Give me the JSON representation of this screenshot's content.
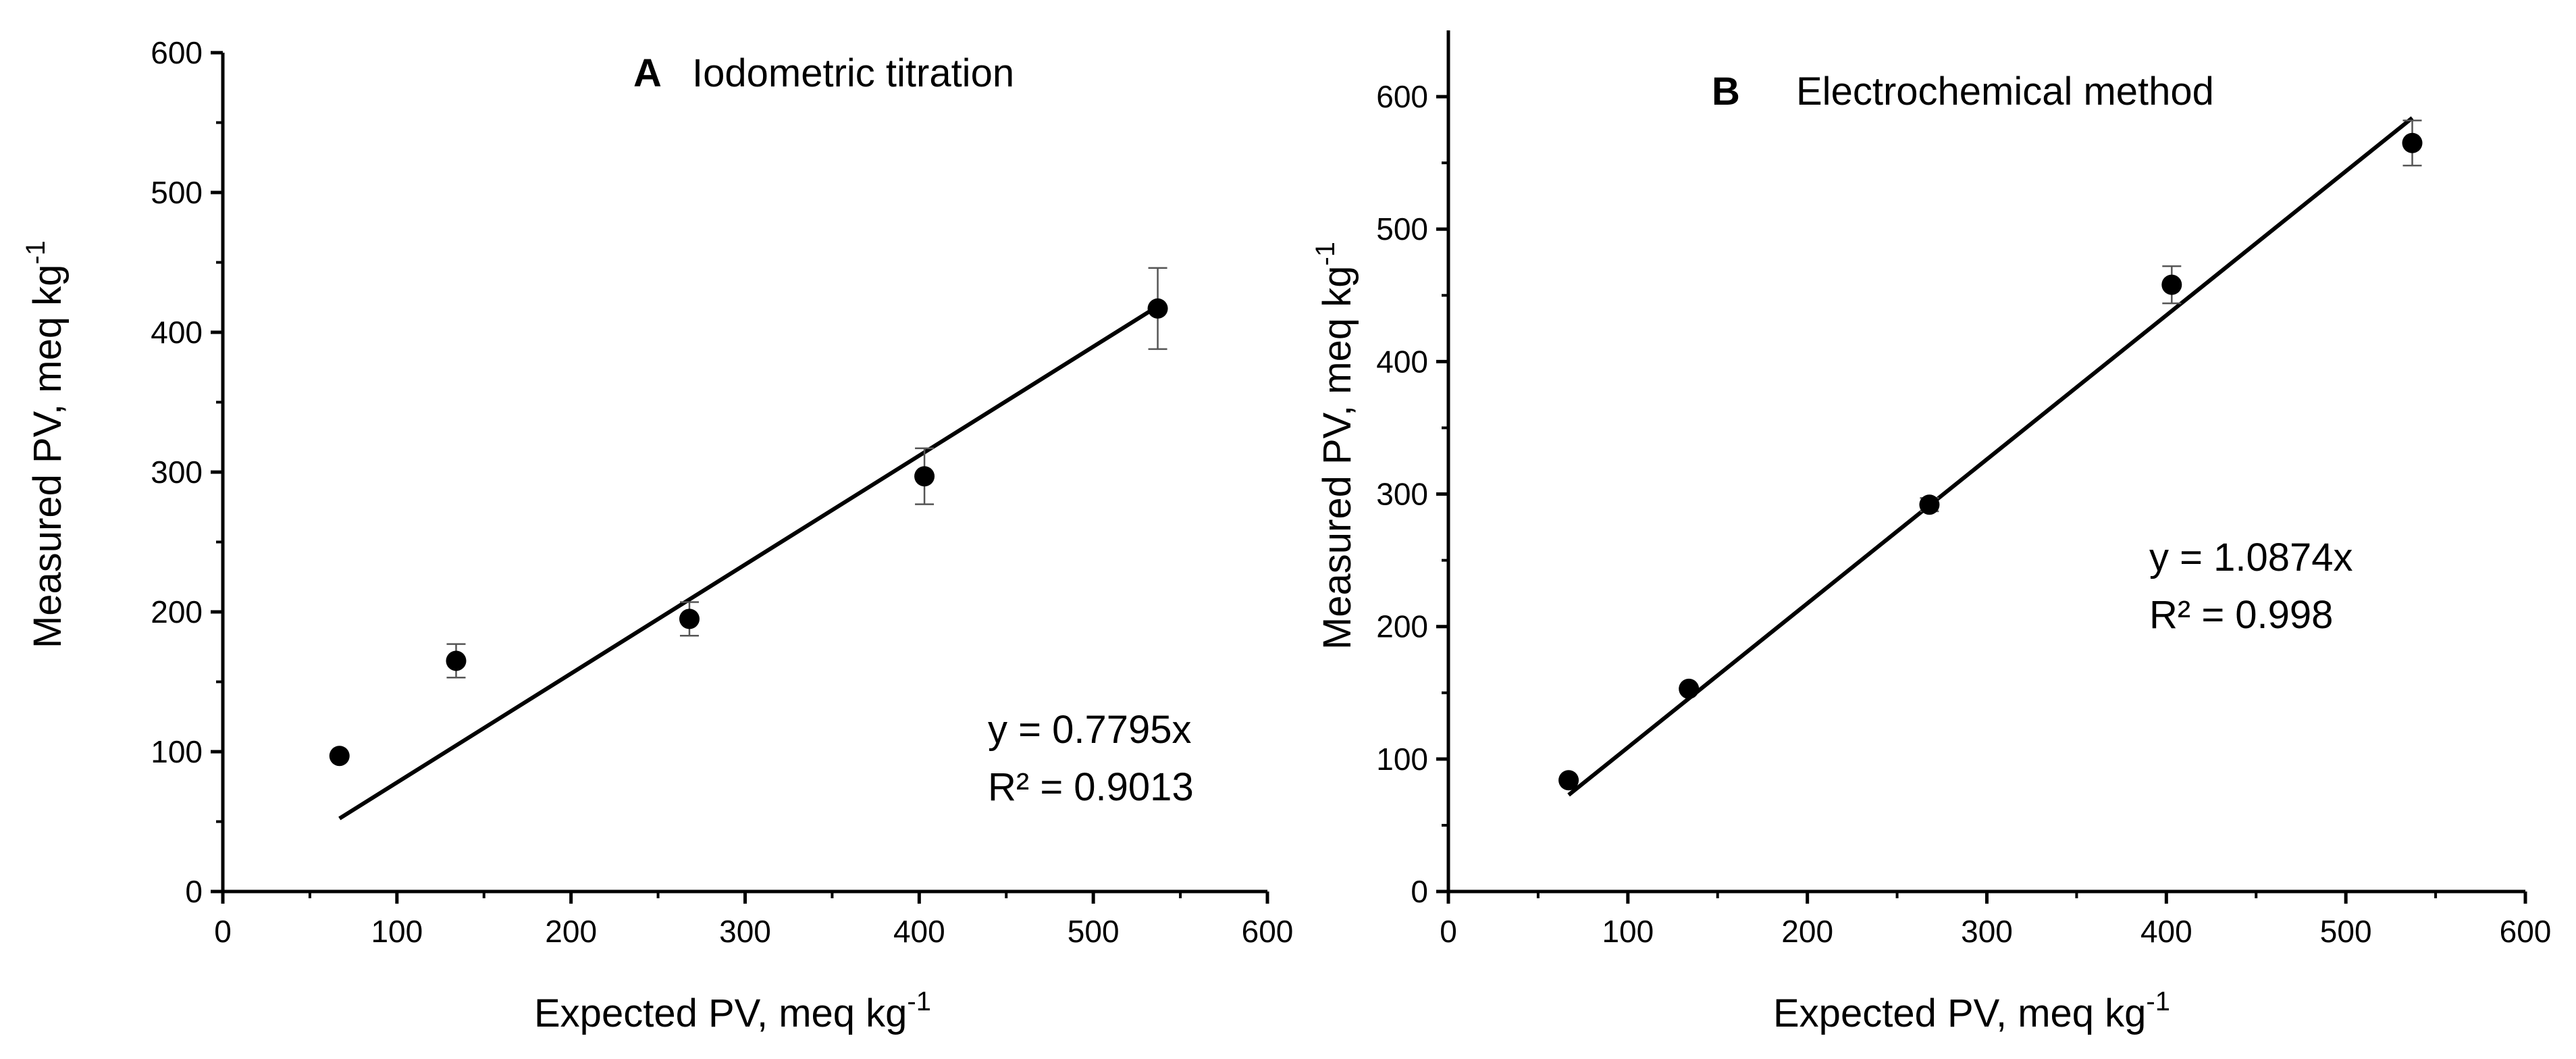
{
  "colors": {
    "marker": "#000000",
    "line": "#000000",
    "error_bar": "#555555"
  },
  "chart_data": [
    {
      "type": "scatter",
      "panel": "A",
      "title": "Iodometric titration",
      "xlabel": "Expected PV, meq kg",
      "xlabel_sup": "-1",
      "ylabel": "Measured PV, meq kg",
      "ylabel_sup": "-1",
      "xlim": [
        0,
        600
      ],
      "ylim": [
        0,
        600
      ],
      "xticks": [
        0,
        100,
        200,
        300,
        400,
        500,
        600
      ],
      "yticks": [
        0,
        100,
        200,
        300,
        400,
        500,
        600
      ],
      "points": [
        {
          "x": 67,
          "y": 97,
          "err": 0
        },
        {
          "x": 134,
          "y": 165,
          "err": 12
        },
        {
          "x": 268,
          "y": 195,
          "err": 12
        },
        {
          "x": 403,
          "y": 297,
          "err": 20
        },
        {
          "x": 537,
          "y": 417,
          "err": 29
        }
      ],
      "fit": {
        "slope": 0.7795,
        "x_range": [
          67,
          537
        ]
      },
      "equation": "y = 0.7795x",
      "r2": "R² = 0.9013"
    },
    {
      "type": "scatter",
      "panel": "B",
      "title": "Electrochemical method",
      "xlabel": "Expected PV, meq kg",
      "xlabel_sup": "-1",
      "ylabel": "Measured PV, meq kg",
      "ylabel_sup": "-1",
      "xlim": [
        0,
        600
      ],
      "ylim": [
        0,
        650
      ],
      "xticks": [
        0,
        100,
        200,
        300,
        400,
        500,
        600
      ],
      "yticks": [
        0,
        100,
        200,
        300,
        400,
        500,
        600
      ],
      "points": [
        {
          "x": 67,
          "y": 84,
          "err": 0
        },
        {
          "x": 134,
          "y": 153,
          "err": 0
        },
        {
          "x": 268,
          "y": 292,
          "err": 5
        },
        {
          "x": 403,
          "y": 458,
          "err": 14
        },
        {
          "x": 537,
          "y": 565,
          "err": 17
        }
      ],
      "fit": {
        "slope": 1.0874,
        "x_range": [
          67,
          537
        ]
      },
      "equation": "y = 1.0874x",
      "r2": "R² = 0.998"
    }
  ]
}
